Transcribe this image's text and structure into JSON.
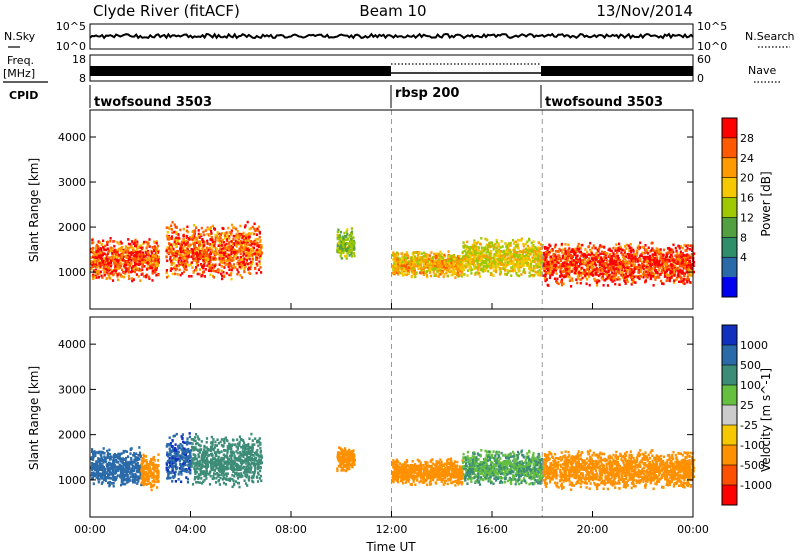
{
  "header": {
    "station": "Clyde River (fitACF)",
    "beam": "Beam 10",
    "date": "13/Nov/2014"
  },
  "nsky_panel": {
    "left_label": "N.Sky",
    "right_label": "N.Search",
    "left_ticks": [
      "10^5",
      "10^0"
    ],
    "right_ticks": [
      "10^5",
      "10^0"
    ]
  },
  "freq_panel": {
    "left_label_1": "Freq.",
    "left_label_2": "[MHz]",
    "left_ticks": [
      "18",
      "8"
    ],
    "right_label": "Nave",
    "right_ticks": [
      "60",
      "0"
    ]
  },
  "cpid_panel": {
    "label": "CPID",
    "segments": [
      {
        "name": "twofsound 3503",
        "start_h": 0,
        "end_h": 12
      },
      {
        "name": "rbsp 200",
        "start_h": 12,
        "end_h": 18
      },
      {
        "name": "twofsound 3503",
        "start_h": 18,
        "end_h": 24
      }
    ]
  },
  "time_axis": {
    "label": "Time UT",
    "ticks": [
      "00:00",
      "04:00",
      "08:00",
      "12:00",
      "16:00",
      "20:00",
      "00:00"
    ]
  },
  "chart_data": [
    {
      "type": "heatmap",
      "panel": "power",
      "ylabel": "Slant Range [km]",
      "yticks": [
        1000,
        2000,
        3000,
        4000
      ],
      "ylim": [
        180,
        4600
      ],
      "xlim_hours": [
        0,
        24
      ],
      "colorbar": {
        "label": "Power [dB]",
        "ticks": [
          "28",
          "24",
          "20",
          "16",
          "12",
          "8",
          "4"
        ],
        "colors": [
          "#ff0000",
          "#ff5a00",
          "#ff9a00",
          "#f5c800",
          "#9ec800",
          "#52a040",
          "#2f8f6a",
          "#2a6aa8",
          "#0000ee"
        ]
      },
      "scatter_regions": [
        {
          "t_start": 0.0,
          "t_end": 2.7,
          "r_center": 1300,
          "r_halfwidth": 500,
          "value": 26
        },
        {
          "t_start": 3.0,
          "t_end": 6.8,
          "r_center": 1500,
          "r_halfwidth": 650,
          "value": 25
        },
        {
          "t_start": 9.8,
          "t_end": 10.5,
          "r_center": 1650,
          "r_halfwidth": 350,
          "value": 14
        },
        {
          "t_start": 12.0,
          "t_end": 14.8,
          "r_center": 1200,
          "r_halfwidth": 300,
          "value": 20
        },
        {
          "t_start": 14.8,
          "t_end": 18.0,
          "r_center": 1350,
          "r_halfwidth": 450,
          "value": 18
        },
        {
          "t_start": 18.0,
          "t_end": 24.0,
          "r_center": 1200,
          "r_halfwidth": 500,
          "value": 27
        }
      ]
    },
    {
      "type": "heatmap",
      "panel": "velocity",
      "ylabel": "Slant Range [km]",
      "yticks": [
        1000,
        2000,
        3000,
        4000
      ],
      "ylim": [
        180,
        4600
      ],
      "xlim_hours": [
        0,
        24
      ],
      "colorbar": {
        "label": "Velocity [m s^-1]",
        "ticks": [
          "1000",
          "500",
          "100",
          "25",
          "-25",
          "-100",
          "-500",
          "-1000"
        ],
        "colors": [
          "#1030c0",
          "#2a6aa8",
          "#3c8c78",
          "#66c040",
          "#cccccc",
          "#f5c800",
          "#ff9000",
          "#ff5000",
          "#ff0000"
        ]
      },
      "scatter_regions": [
        {
          "t_start": 0.0,
          "t_end": 2.0,
          "r_center": 1300,
          "r_halfwidth": 450,
          "value": 800
        },
        {
          "t_start": 2.0,
          "t_end": 2.7,
          "r_center": 1200,
          "r_halfwidth": 400,
          "value": -300
        },
        {
          "t_start": 3.0,
          "t_end": 4.0,
          "r_center": 1500,
          "r_halfwidth": 600,
          "value": 900
        },
        {
          "t_start": 4.0,
          "t_end": 6.8,
          "r_center": 1450,
          "r_halfwidth": 600,
          "value": 150
        },
        {
          "t_start": 9.8,
          "t_end": 10.5,
          "r_center": 1500,
          "r_halfwidth": 300,
          "value": -200
        },
        {
          "t_start": 12.0,
          "t_end": 14.8,
          "r_center": 1200,
          "r_halfwidth": 300,
          "value": -300
        },
        {
          "t_start": 14.8,
          "t_end": 18.0,
          "r_center": 1300,
          "r_halfwidth": 400,
          "value": 100
        },
        {
          "t_start": 18.0,
          "t_end": 24.0,
          "r_center": 1250,
          "r_halfwidth": 450,
          "value": -400
        }
      ]
    }
  ]
}
